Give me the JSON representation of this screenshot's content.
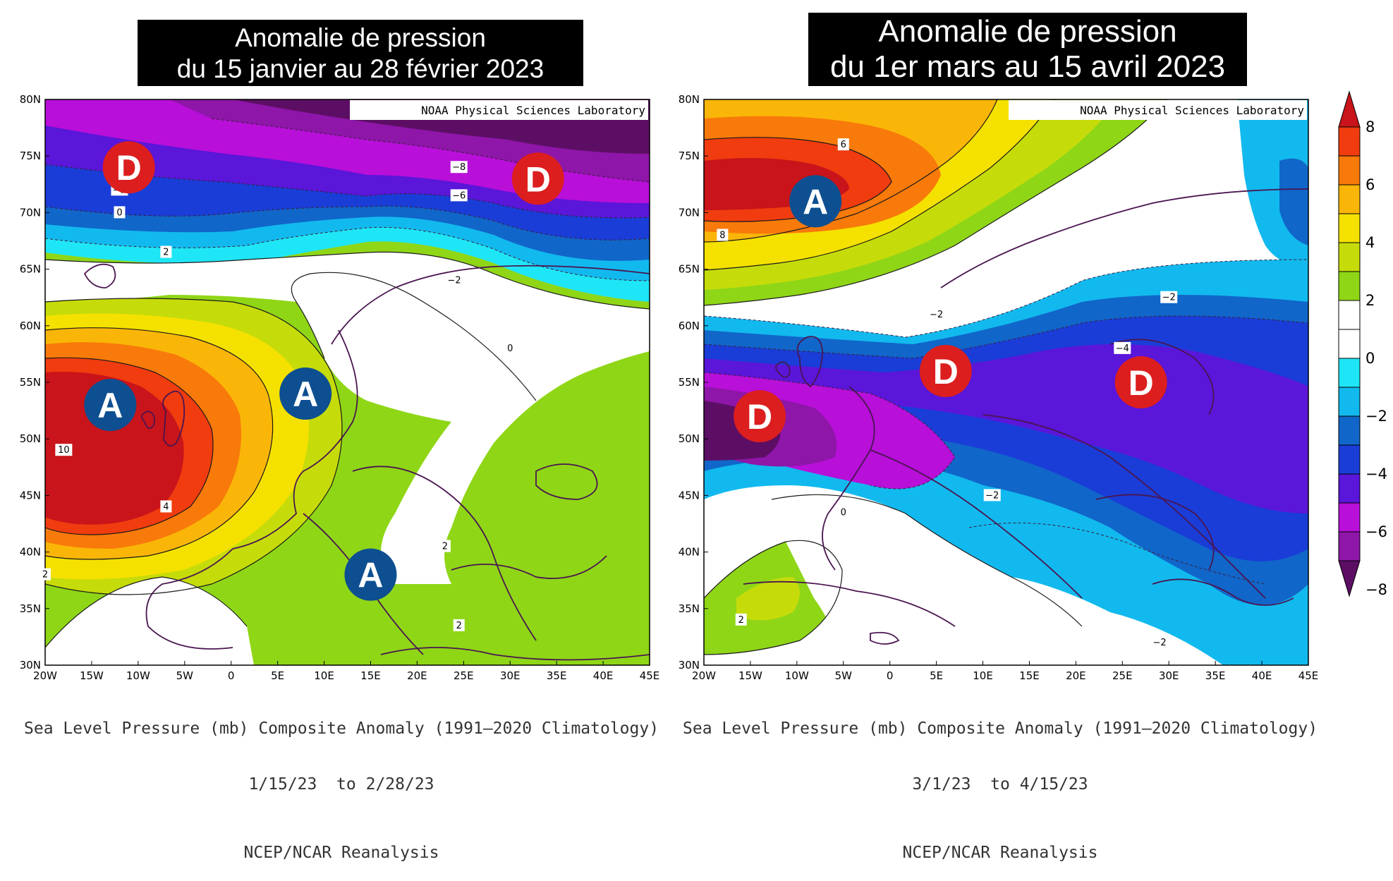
{
  "maps": [
    {
      "title": [
        "Anomalie de pression",
        "du 15 janvier au 28 février 2023"
      ],
      "credit": "NOAA Physical Sciences Laboratory",
      "caption": [
        "Sea Level Pressure (mb) Composite Anomaly (1991–2020 Climatology)",
        "1/15/23  to 2/28/23",
        "NCEP/NCAR Reanalysis"
      ],
      "markers": [
        {
          "label": "D",
          "lon": -11,
          "lat": 74,
          "color": "#dc1e1e"
        },
        {
          "label": "D",
          "lon": 33,
          "lat": 73,
          "color": "#dc1e1e"
        },
        {
          "label": "A",
          "lon": -13,
          "lat": 53,
          "color": "#0d4f91"
        },
        {
          "label": "A",
          "lon": 8,
          "lat": 54,
          "color": "#0d4f91"
        },
        {
          "label": "A",
          "lon": 15,
          "lat": 38,
          "color": "#0d4f91"
        }
      ],
      "contour_labels": [
        {
          "text": "−8",
          "lon": 24.5,
          "lat": 74
        },
        {
          "text": "−6",
          "lon": 24.5,
          "lat": 71.5
        },
        {
          "text": "−2",
          "lon": -12,
          "lat": 72
        },
        {
          "text": "0",
          "lon": -12,
          "lat": 70
        },
        {
          "text": "2",
          "lon": -7,
          "lat": 66.5
        },
        {
          "text": "−2",
          "lon": 24,
          "lat": 64
        },
        {
          "text": "0",
          "lon": 30,
          "lat": 58
        },
        {
          "text": "10",
          "lon": -18,
          "lat": 49
        },
        {
          "text": "4",
          "lon": -7,
          "lat": 44
        },
        {
          "text": "2",
          "lon": -20,
          "lat": 38
        },
        {
          "text": "2",
          "lon": 23,
          "lat": 40.5
        },
        {
          "text": "2",
          "lon": 24.5,
          "lat": 33.5
        }
      ]
    },
    {
      "title": [
        "Anomalie de pression",
        "du 1er mars au 15 avril 2023"
      ],
      "credit": "NOAA Physical Sciences Laboratory",
      "caption": [
        "Sea Level Pressure (mb) Composite Anomaly (1991–2020 Climatology)",
        "3/1/23  to 4/15/23",
        "NCEP/NCAR Reanalysis"
      ],
      "markers": [
        {
          "label": "A",
          "lon": -8,
          "lat": 71,
          "color": "#0d4f91"
        },
        {
          "label": "D",
          "lon": -14,
          "lat": 52,
          "color": "#dc1e1e"
        },
        {
          "label": "D",
          "lon": 6,
          "lat": 56,
          "color": "#dc1e1e"
        },
        {
          "label": "D",
          "lon": 27,
          "lat": 55,
          "color": "#dc1e1e"
        }
      ],
      "contour_labels": [
        {
          "text": "6",
          "lon": -5,
          "lat": 76
        },
        {
          "text": "8",
          "lon": -18,
          "lat": 68
        },
        {
          "text": "−2",
          "lon": 5,
          "lat": 61
        },
        {
          "text": "−2",
          "lon": 30,
          "lat": 62.5
        },
        {
          "text": "−4",
          "lon": 25,
          "lat": 58
        },
        {
          "text": "−2",
          "lon": 11,
          "lat": 45
        },
        {
          "text": "0",
          "lon": -5,
          "lat": 43.5
        },
        {
          "text": "2",
          "lon": -16,
          "lat": 34
        },
        {
          "text": "−2",
          "lon": 29,
          "lat": 32
        }
      ]
    }
  ],
  "axes": {
    "lon_ticks": [
      "20W",
      "15W",
      "10W",
      "5W",
      "0",
      "5E",
      "10E",
      "15E",
      "20E",
      "25E",
      "30E",
      "35E",
      "40E",
      "45E"
    ],
    "lat_ticks": [
      "30N",
      "35N",
      "40N",
      "45N",
      "50N",
      "55N",
      "60N",
      "65N",
      "70N",
      "75N",
      "80N"
    ],
    "lon_range": [
      -20,
      45
    ],
    "lat_range": [
      30,
      80
    ]
  },
  "colorbar": {
    "labels": [
      "8",
      "6",
      "4",
      "2",
      "0",
      "−2",
      "−4",
      "−6",
      "−8"
    ],
    "colors": [
      "#c8141a",
      "#f03c0f",
      "#f87a0a",
      "#fab608",
      "#f5e100",
      "#c6dc0a",
      "#8fd617",
      "#ffffff",
      "#ffffff",
      "#1fe6f6",
      "#12b9ee",
      "#1166c9",
      "#1a3dd8",
      "#5a16d9",
      "#b80fd9",
      "#8e16a8",
      "#5c0e64"
    ]
  }
}
